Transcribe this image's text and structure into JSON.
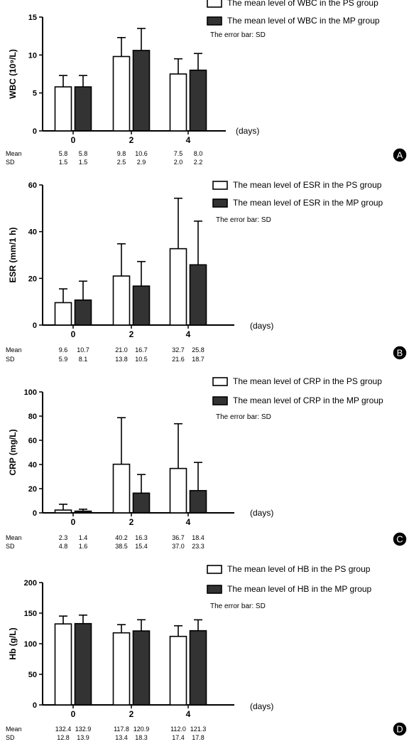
{
  "x_axis_unit": "(days)",
  "stats_labels": {
    "mean": "Mean",
    "sd": "SD"
  },
  "legend_error_text": "The error bar: SD",
  "colors": {
    "ps": "#ffffff",
    "mp": "#333333",
    "axis": "#000000",
    "badge": "#000000"
  },
  "chart_data": [
    {
      "panel": "A",
      "type": "bar",
      "ylabel": "WBC (10⁹/L)",
      "ylim": [
        0,
        15
      ],
      "yticks": [
        0,
        5,
        10,
        15
      ],
      "categories": [
        "0",
        "2",
        "4"
      ],
      "series": [
        {
          "name": "The mean level of WBC in the PS group",
          "values": [
            5.8,
            9.8,
            7.5
          ],
          "sd": [
            1.5,
            2.5,
            2.0
          ]
        },
        {
          "name": "The mean level of WBC in the MP group",
          "values": [
            5.8,
            10.6,
            8.0
          ],
          "sd": [
            1.5,
            2.9,
            2.2
          ]
        }
      ],
      "mean_text": [
        [
          "5.8",
          "5.8"
        ],
        [
          "9.8",
          "10.6"
        ],
        [
          "7.5",
          "8.0"
        ]
      ],
      "sd_text": [
        [
          "1.5",
          "1.5"
        ],
        [
          "2.5",
          "2.9"
        ],
        [
          "2.0",
          "2.2"
        ]
      ]
    },
    {
      "panel": "B",
      "type": "bar",
      "ylabel": "ESR (mm/1 h)",
      "ylim": [
        0,
        60
      ],
      "yticks": [
        0,
        20,
        40,
        60
      ],
      "categories": [
        "0",
        "2",
        "4"
      ],
      "series": [
        {
          "name": "The mean level of ESR in the PS group",
          "values": [
            9.6,
            21.0,
            32.7
          ],
          "sd": [
            5.9,
            13.8,
            21.6
          ]
        },
        {
          "name": "The mean level of ESR in the MP group",
          "values": [
            10.7,
            16.7,
            25.8
          ],
          "sd": [
            8.1,
            10.5,
            18.7
          ]
        }
      ],
      "mean_text": [
        [
          "9.6",
          "10.7"
        ],
        [
          "21.0",
          "16.7"
        ],
        [
          "32.7",
          "25.8"
        ]
      ],
      "sd_text": [
        [
          "5.9",
          "8.1"
        ],
        [
          "13.8",
          "10.5"
        ],
        [
          "21.6",
          "18.7"
        ]
      ]
    },
    {
      "panel": "C",
      "type": "bar",
      "ylabel": "CRP (mg/L)",
      "ylim": [
        0,
        100
      ],
      "yticks": [
        0,
        20,
        40,
        60,
        80,
        100
      ],
      "categories": [
        "0",
        "2",
        "4"
      ],
      "series": [
        {
          "name": "The mean level of CRP in the PS group",
          "values": [
            2.3,
            40.2,
            36.7
          ],
          "sd": [
            4.8,
            38.5,
            37.0
          ]
        },
        {
          "name": "The mean level of CRP in the MP group",
          "values": [
            1.4,
            16.3,
            18.4
          ],
          "sd": [
            1.6,
            15.4,
            23.3
          ]
        }
      ],
      "mean_text": [
        [
          "2.3",
          "1.4"
        ],
        [
          "40.2",
          "16.3"
        ],
        [
          "36.7",
          "18.4"
        ]
      ],
      "sd_text": [
        [
          "4.8",
          "1.6"
        ],
        [
          "38.5",
          "15.4"
        ],
        [
          "37.0",
          "23.3"
        ]
      ]
    },
    {
      "panel": "D",
      "type": "bar",
      "ylabel": "Hb (g/L)",
      "ylim": [
        0,
        200
      ],
      "yticks": [
        0,
        50,
        100,
        150,
        200
      ],
      "categories": [
        "0",
        "2",
        "4"
      ],
      "series": [
        {
          "name": "The mean level of HB in the PS group",
          "values": [
            132.4,
            117.8,
            112.0
          ],
          "sd": [
            12.8,
            13.4,
            17.4
          ]
        },
        {
          "name": "The mean level of HB in the MP group",
          "values": [
            132.9,
            120.9,
            121.3
          ],
          "sd": [
            13.9,
            18.3,
            17.8
          ]
        }
      ],
      "mean_text": [
        [
          "132.4",
          "132.9"
        ],
        [
          "117.8",
          "120.9"
        ],
        [
          "112.0",
          "121.3"
        ]
      ],
      "sd_text": [
        [
          "12.8",
          "13.9"
        ],
        [
          "13.4",
          "18.3"
        ],
        [
          "17.4",
          "17.8"
        ]
      ]
    }
  ]
}
